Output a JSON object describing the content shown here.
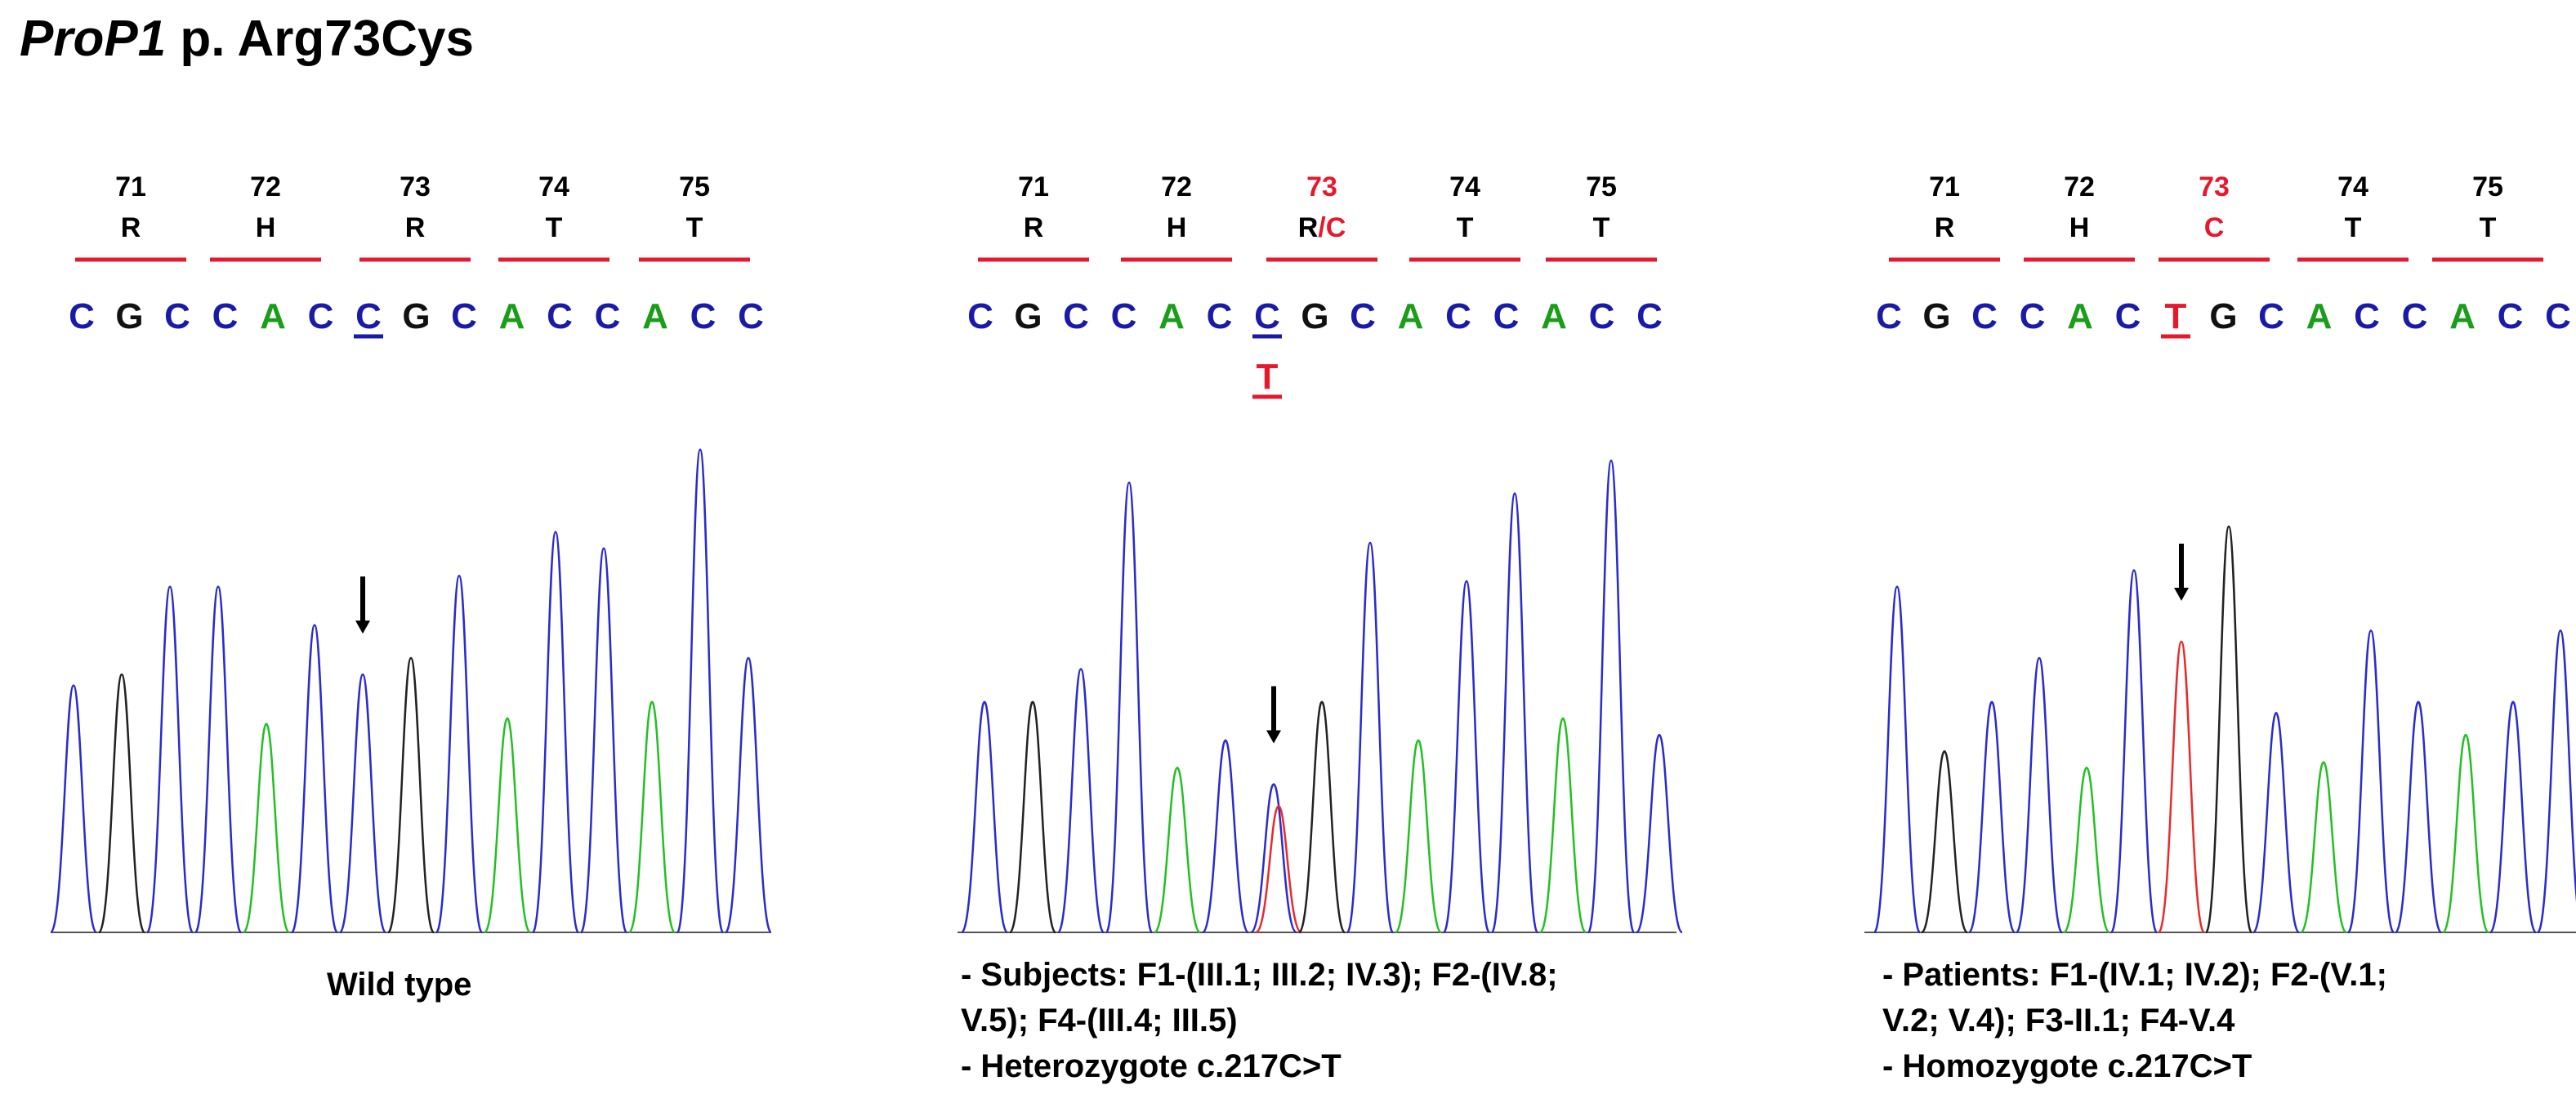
{
  "title": {
    "gene": "ProP1",
    "rest": " p. Arg73Cys"
  },
  "colors": {
    "A": "#1a9e1a",
    "C": "#1a1aa8",
    "G": "#111111",
    "T": "#e8182c",
    "bar": "#e8182c",
    "trace_A": "#22c022",
    "trace_C": "#2a2ad0",
    "trace_G": "#222222",
    "trace_T": "#e82a2a"
  },
  "panels": [
    {
      "id": "wild-type",
      "codons": [
        {
          "num": "71",
          "aa": "R",
          "num_color": "#000000",
          "aa_parts": [
            {
              "t": "R",
              "c": "#000000"
            }
          ]
        },
        {
          "num": "72",
          "aa": "H",
          "num_color": "#000000",
          "aa_parts": [
            {
              "t": "H",
              "c": "#000000"
            }
          ]
        },
        {
          "num": "73",
          "aa": "R",
          "num_color": "#000000",
          "aa_parts": [
            {
              "t": "R",
              "c": "#000000"
            }
          ]
        },
        {
          "num": "74",
          "aa": "T",
          "num_color": "#000000",
          "aa_parts": [
            {
              "t": "T",
              "c": "#000000"
            }
          ]
        },
        {
          "num": "75",
          "aa": "T",
          "num_color": "#000000",
          "aa_parts": [
            {
              "t": "T",
              "c": "#000000"
            }
          ]
        }
      ],
      "sequence": [
        "C",
        "G",
        "C",
        "C",
        "A",
        "C",
        "C",
        "G",
        "C",
        "A",
        "C",
        "C",
        "A",
        "C",
        "C"
      ],
      "underlined_index": 6,
      "alt_base": null,
      "caption": [
        "Wild type"
      ],
      "peaks": [
        {
          "b": "C",
          "h": 0.45
        },
        {
          "b": "G",
          "h": 0.47
        },
        {
          "b": "C",
          "h": 0.63
        },
        {
          "b": "C",
          "h": 0.63
        },
        {
          "b": "A",
          "h": 0.38
        },
        {
          "b": "C",
          "h": 0.56
        },
        {
          "b": "C",
          "h": 0.47
        },
        {
          "b": "G",
          "h": 0.5
        },
        {
          "b": "C",
          "h": 0.65
        },
        {
          "b": "A",
          "h": 0.39
        },
        {
          "b": "C",
          "h": 0.73
        },
        {
          "b": "C",
          "h": 0.7
        },
        {
          "b": "A",
          "h": 0.42
        },
        {
          "b": "C",
          "h": 0.88
        },
        {
          "b": "C",
          "h": 0.5
        }
      ],
      "arrow_index": 6
    },
    {
      "id": "heterozygote",
      "codons": [
        {
          "num": "71",
          "aa": "R",
          "num_color": "#000000",
          "aa_parts": [
            {
              "t": "R",
              "c": "#000000"
            }
          ]
        },
        {
          "num": "72",
          "aa": "H",
          "num_color": "#000000",
          "aa_parts": [
            {
              "t": "H",
              "c": "#000000"
            }
          ]
        },
        {
          "num": "73",
          "aa": "R/C",
          "num_color": "#e8182c",
          "aa_parts": [
            {
              "t": "R",
              "c": "#000000"
            },
            {
              "t": "/",
              "c": "#e8182c"
            },
            {
              "t": "C",
              "c": "#e8182c"
            }
          ]
        },
        {
          "num": "74",
          "aa": "T",
          "num_color": "#000000",
          "aa_parts": [
            {
              "t": "T",
              "c": "#000000"
            }
          ]
        },
        {
          "num": "75",
          "aa": "T",
          "num_color": "#000000",
          "aa_parts": [
            {
              "t": "T",
              "c": "#000000"
            }
          ]
        }
      ],
      "sequence": [
        "C",
        "G",
        "C",
        "C",
        "A",
        "C",
        "C",
        "G",
        "C",
        "A",
        "C",
        "C",
        "A",
        "C",
        "C"
      ],
      "underlined_index": 6,
      "alt_base": "T",
      "caption": [
        "- Subjects: F1-(III.1; III.2; IV.3); F2-(IV.8;",
        "V.5); F4-(III.4; III.5)",
        "- Heterozygote c.217C>T"
      ],
      "peaks": [
        {
          "b": "C",
          "h": 0.42
        },
        {
          "b": "G",
          "h": 0.42
        },
        {
          "b": "C",
          "h": 0.48
        },
        {
          "b": "C",
          "h": 0.82
        },
        {
          "b": "A",
          "h": 0.3
        },
        {
          "b": "C",
          "h": 0.35
        },
        {
          "b": "C",
          "h": 0.27,
          "t": 0.23
        },
        {
          "b": "G",
          "h": 0.42
        },
        {
          "b": "C",
          "h": 0.71
        },
        {
          "b": "A",
          "h": 0.35
        },
        {
          "b": "C",
          "h": 0.64
        },
        {
          "b": "C",
          "h": 0.8
        },
        {
          "b": "A",
          "h": 0.39
        },
        {
          "b": "C",
          "h": 0.86
        },
        {
          "b": "C",
          "h": 0.36
        }
      ],
      "arrow_index": 6
    },
    {
      "id": "homozygote",
      "codons": [
        {
          "num": "71",
          "aa": "R",
          "num_color": "#000000",
          "aa_parts": [
            {
              "t": "R",
              "c": "#000000"
            }
          ]
        },
        {
          "num": "72",
          "aa": "H",
          "num_color": "#000000",
          "aa_parts": [
            {
              "t": "H",
              "c": "#000000"
            }
          ]
        },
        {
          "num": "73",
          "aa": "C",
          "num_color": "#e8182c",
          "aa_parts": [
            {
              "t": "C",
              "c": "#e8182c"
            }
          ]
        },
        {
          "num": "74",
          "aa": "T",
          "num_color": "#000000",
          "aa_parts": [
            {
              "t": "T",
              "c": "#000000"
            }
          ]
        },
        {
          "num": "75",
          "aa": "T",
          "num_color": "#000000",
          "aa_parts": [
            {
              "t": "T",
              "c": "#000000"
            }
          ]
        }
      ],
      "sequence": [
        "C",
        "G",
        "C",
        "C",
        "A",
        "C",
        "T",
        "G",
        "C",
        "A",
        "C",
        "C",
        "A",
        "C",
        "C"
      ],
      "underlined_index": 6,
      "alt_base": null,
      "caption": [
        "- Patients: F1-(IV.1; IV.2); F2-(V.1;",
        "V.2; V.4); F3-II.1; F4-V.4",
        "- Homozygote c.217C>T"
      ],
      "peaks": [
        {
          "b": "C",
          "h": 0.63
        },
        {
          "b": "G",
          "h": 0.33
        },
        {
          "b": "C",
          "h": 0.42
        },
        {
          "b": "C",
          "h": 0.5
        },
        {
          "b": "A",
          "h": 0.3
        },
        {
          "b": "C",
          "h": 0.66
        },
        {
          "b": "T",
          "h": 0.53
        },
        {
          "b": "G",
          "h": 0.74
        },
        {
          "b": "C",
          "h": 0.4
        },
        {
          "b": "A",
          "h": 0.31
        },
        {
          "b": "C",
          "h": 0.55
        },
        {
          "b": "C",
          "h": 0.42
        },
        {
          "b": "A",
          "h": 0.36
        },
        {
          "b": "C",
          "h": 0.42
        },
        {
          "b": "C",
          "h": 0.55
        }
      ],
      "arrow_index": 6
    }
  ]
}
